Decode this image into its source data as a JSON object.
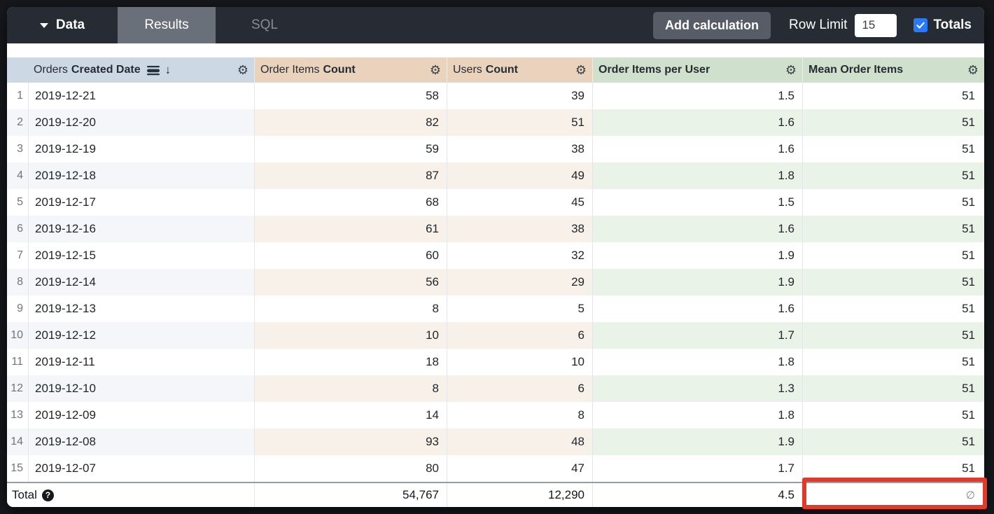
{
  "toolbar": {
    "data_label": "Data",
    "tabs": [
      {
        "label": "Results",
        "active": true
      },
      {
        "label": "SQL",
        "active": false
      }
    ],
    "add_calculation_label": "Add calculation",
    "row_limit_label": "Row Limit",
    "row_limit_value": "15",
    "totals_label": "Totals",
    "totals_checked": true,
    "checkbox_color": "#2979ff"
  },
  "table": {
    "header": {
      "col_date_prefix": "Orders",
      "col_date_bold": "Created Date",
      "col_date_sorted": "desc",
      "col_order_items_prefix": "Order Items",
      "col_order_items_bold": "Count",
      "col_users_prefix": "Users",
      "col_users_bold": "Count",
      "col_per_user_bold": "Order Items per User",
      "col_mean_bold": "Mean Order Items"
    },
    "header_colors": {
      "dimension_blue": "#ccd8e3",
      "measure_tan": "#e9d3bc",
      "measure_green": "#cfe0cc"
    },
    "rows": [
      {
        "num": "1",
        "date": "2019-12-21",
        "order_items_count": "58",
        "users_count": "39",
        "order_items_per_user": "1.5",
        "mean_order_items": "51"
      },
      {
        "num": "2",
        "date": "2019-12-20",
        "order_items_count": "82",
        "users_count": "51",
        "order_items_per_user": "1.6",
        "mean_order_items": "51"
      },
      {
        "num": "3",
        "date": "2019-12-19",
        "order_items_count": "59",
        "users_count": "38",
        "order_items_per_user": "1.6",
        "mean_order_items": "51"
      },
      {
        "num": "4",
        "date": "2019-12-18",
        "order_items_count": "87",
        "users_count": "49",
        "order_items_per_user": "1.8",
        "mean_order_items": "51"
      },
      {
        "num": "5",
        "date": "2019-12-17",
        "order_items_count": "68",
        "users_count": "45",
        "order_items_per_user": "1.5",
        "mean_order_items": "51"
      },
      {
        "num": "6",
        "date": "2019-12-16",
        "order_items_count": "61",
        "users_count": "38",
        "order_items_per_user": "1.6",
        "mean_order_items": "51"
      },
      {
        "num": "7",
        "date": "2019-12-15",
        "order_items_count": "60",
        "users_count": "32",
        "order_items_per_user": "1.9",
        "mean_order_items": "51"
      },
      {
        "num": "8",
        "date": "2019-12-14",
        "order_items_count": "56",
        "users_count": "29",
        "order_items_per_user": "1.9",
        "mean_order_items": "51"
      },
      {
        "num": "9",
        "date": "2019-12-13",
        "order_items_count": "8",
        "users_count": "5",
        "order_items_per_user": "1.6",
        "mean_order_items": "51"
      },
      {
        "num": "10",
        "date": "2019-12-12",
        "order_items_count": "10",
        "users_count": "6",
        "order_items_per_user": "1.7",
        "mean_order_items": "51"
      },
      {
        "num": "11",
        "date": "2019-12-11",
        "order_items_count": "18",
        "users_count": "10",
        "order_items_per_user": "1.8",
        "mean_order_items": "51"
      },
      {
        "num": "12",
        "date": "2019-12-10",
        "order_items_count": "8",
        "users_count": "6",
        "order_items_per_user": "1.3",
        "mean_order_items": "51"
      },
      {
        "num": "13",
        "date": "2019-12-09",
        "order_items_count": "14",
        "users_count": "8",
        "order_items_per_user": "1.8",
        "mean_order_items": "51"
      },
      {
        "num": "14",
        "date": "2019-12-08",
        "order_items_count": "93",
        "users_count": "48",
        "order_items_per_user": "1.9",
        "mean_order_items": "51"
      },
      {
        "num": "15",
        "date": "2019-12-07",
        "order_items_count": "80",
        "users_count": "47",
        "order_items_per_user": "1.7",
        "mean_order_items": "51"
      }
    ],
    "total": {
      "label": "Total",
      "help_glyph": "?",
      "order_items_count": "54,767",
      "users_count": "12,290",
      "order_items_per_user": "4.5",
      "mean_order_items": "∅"
    }
  },
  "annotation": {
    "type": "highlight-box",
    "color": "#e23a2a"
  }
}
